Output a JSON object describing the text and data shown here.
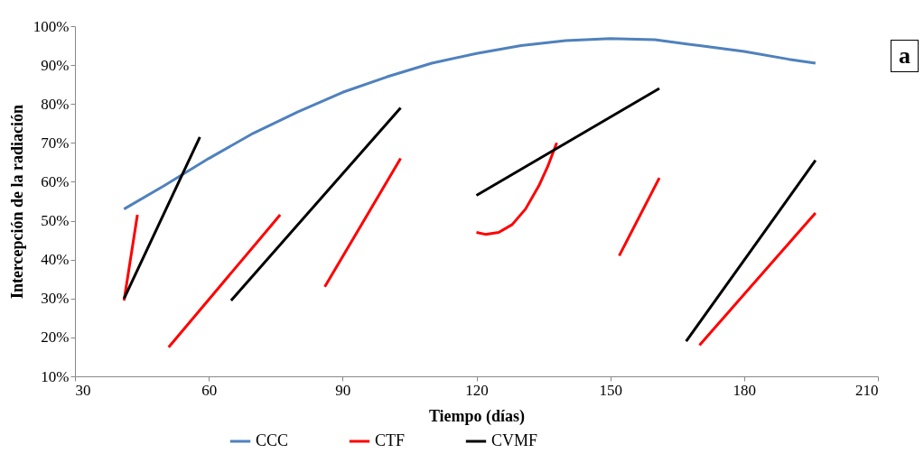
{
  "chart_data": {
    "type": "line",
    "xlabel": "Tiempo (días)",
    "ylabel": "Intercepción de la radiación",
    "annotations": [
      "a"
    ],
    "xlim": [
      30,
      210
    ],
    "xticks": [
      30,
      60,
      90,
      120,
      150,
      180,
      210
    ],
    "ylim": [
      10,
      100
    ],
    "yticks": [
      {
        "value": 10,
        "label": "10%"
      },
      {
        "value": 20,
        "label": "20%"
      },
      {
        "value": 30,
        "label": "30%"
      },
      {
        "value": 40,
        "label": "40%"
      },
      {
        "value": 50,
        "label": "50%"
      },
      {
        "value": 60,
        "label": "60%"
      },
      {
        "value": 70,
        "label": "70%"
      },
      {
        "value": 80,
        "label": "80%"
      },
      {
        "value": 90,
        "label": "90%"
      },
      {
        "value": 100,
        "label": "100%"
      }
    ],
    "grid": false,
    "legend": "bottom",
    "series": [
      {
        "name": "CCC",
        "color": "#4f81bd",
        "x": [
          41,
          50,
          60,
          70,
          80,
          90,
          100,
          110,
          120,
          130,
          140,
          150,
          160,
          170,
          180,
          190,
          196
        ],
        "values": [
          53,
          59,
          66,
          72.5,
          78,
          83,
          87,
          90.5,
          93,
          95,
          96.3,
          96.8,
          96.5,
          95,
          93.5,
          91.5,
          90.5
        ]
      },
      {
        "name": "CTF",
        "color": "#ff0000",
        "x": [
          41,
          44,
          47,
          51,
          76,
          80,
          86,
          103,
          110,
          120,
          122,
          125,
          128,
          131,
          134,
          136,
          138,
          145,
          152,
          161,
          165,
          170,
          196
        ],
        "values": [
          29.5,
          51.5,
          null,
          17.5,
          51.5,
          null,
          33,
          66,
          null,
          47,
          46.5,
          47,
          49,
          53,
          59,
          64,
          70,
          null,
          41,
          61,
          null,
          18,
          52
        ]
      },
      {
        "name": "CVMF",
        "color": "#000000",
        "x": [
          41,
          58,
          62,
          65,
          103,
          110,
          120,
          161,
          164,
          167,
          196
        ],
        "values": [
          30,
          71.5,
          null,
          29.5,
          79,
          null,
          56.5,
          84,
          null,
          19,
          65.5
        ]
      }
    ]
  }
}
